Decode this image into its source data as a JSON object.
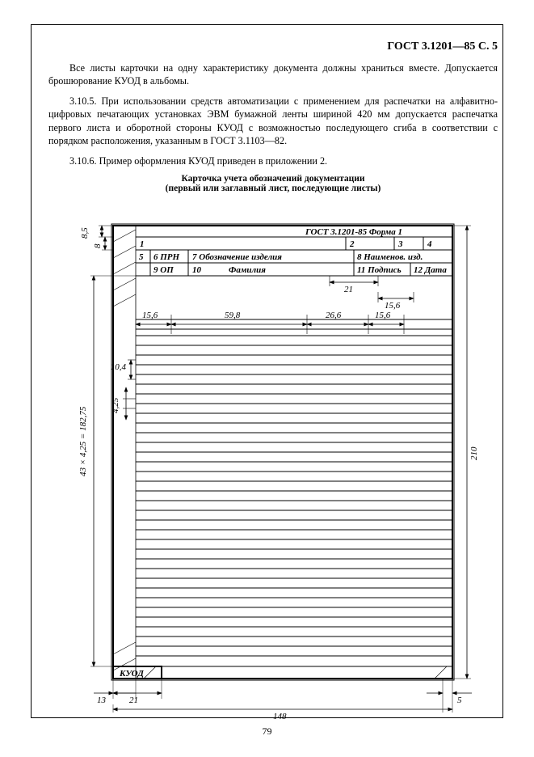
{
  "header": "ГОСТ 3.1201—85 С. 5",
  "para1": "Все листы карточки на одну характеристику документа должны храниться вместе. Допускается брошюрование КУОД в альбомы.",
  "para2": "3.10.5.  При использовании средств автоматизации с применением для распечатки на алфавитно-цифровых печатающих установках ЭВМ бумажной ленты шириной 420  мм допускается распечатка первого листа и оборотной стороны КУОД с возможностью последующего сгиба в соответствии с порядком расположения, указанным в ГОСТ  3.1103—82.",
  "para3": "3.10.6.  Пример оформления КУОД приведен в приложении  2.",
  "fig_title_l1": "Карточка учета обозначений документации",
  "fig_title_l2": "(первый или заглавный лист, последующие листы)",
  "form_header": "ГОСТ 3.1201-85  Форма 1",
  "cells": {
    "c1": "1",
    "c2": "2",
    "c3": "3",
    "c4": "4",
    "c5": "5",
    "c6": "6 ПРН",
    "c7": "7 Обозначение  изделия",
    "c8": "8 Наименов. изд.",
    "c9": "9 ОП",
    "c10": "10",
    "c10t": "Фамилия",
    "c11": "11 Подпись",
    "c12": "12 Дата"
  },
  "dims": {
    "d85": "8,5",
    "d8": "8",
    "d21": "21",
    "d156": "15,6",
    "d598": "59,8",
    "d266": "26,6",
    "d104": "10,4",
    "d425": "4,25",
    "dside": "43 × 4,25 = 182,75",
    "d210": "210",
    "d13": "13",
    "d21b": "21",
    "d148": "148",
    "d5": "5"
  },
  "kuod": "КУОД",
  "page_num": "79",
  "stroke": "#000000",
  "row_count": 36
}
